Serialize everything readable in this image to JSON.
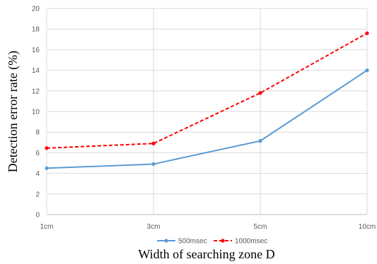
{
  "chart_data": {
    "type": "line",
    "categories": [
      "1cm",
      "3cm",
      "5cm",
      "10cm"
    ],
    "xlabel": "Width of searching zone D",
    "ylabel": "Detection error rate (%)",
    "ylim": [
      0,
      20
    ],
    "yticks": [
      0,
      2,
      4,
      6,
      8,
      10,
      12,
      14,
      16,
      18,
      20
    ],
    "grid": true,
    "legend_position": "bottom",
    "series": [
      {
        "name": "500msec",
        "values": [
          4.5,
          4.9,
          7.15,
          14.0
        ],
        "color": "#5b9bd5",
        "style": "solid"
      },
      {
        "name": "1000msec",
        "values": [
          6.45,
          6.9,
          11.8,
          17.6
        ],
        "color": "#ff0000",
        "style": "dashed"
      }
    ]
  }
}
